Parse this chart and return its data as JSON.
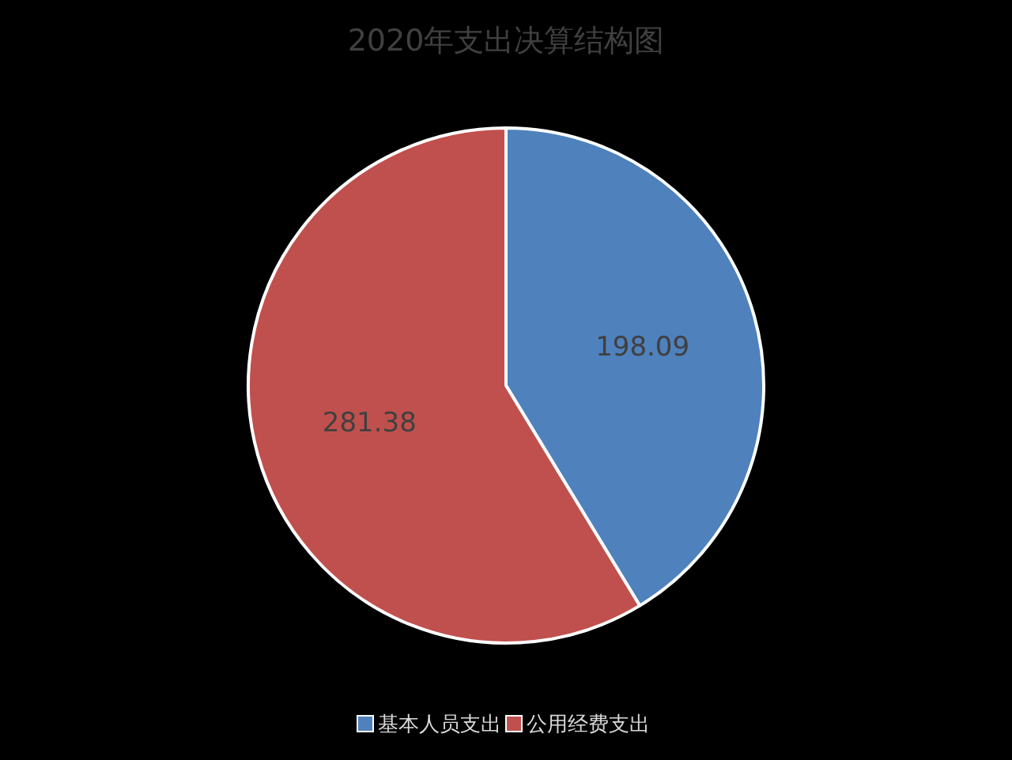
{
  "chart_data": {
    "type": "pie",
    "title": "2020年支出决算结构图",
    "categories": [
      "基本人员支出",
      "公用经费支出"
    ],
    "values": [
      198.09,
      281.38
    ],
    "colors": [
      "#4f81bd",
      "#c0504d"
    ],
    "data_labels": true,
    "legend": "bottom"
  }
}
